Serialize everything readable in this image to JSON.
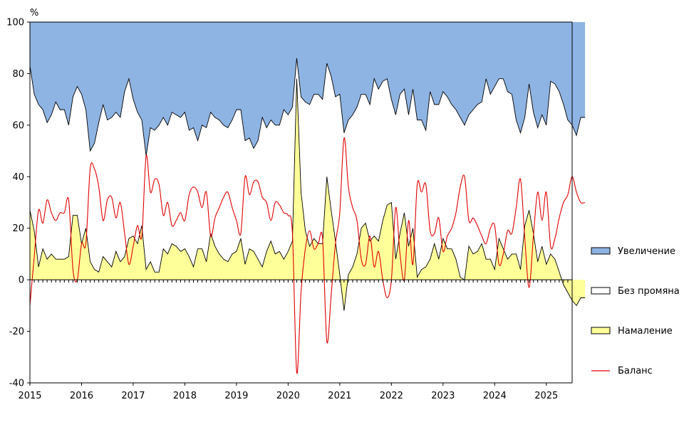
{
  "chart_data": {
    "type": "area",
    "y_unit": "%",
    "ylim": [
      -40,
      100
    ],
    "y_ticks": [
      -40,
      -20,
      0,
      20,
      40,
      60,
      80,
      100
    ],
    "x_ticks": [
      "2015",
      "2016",
      "2017",
      "2018",
      "2019",
      "2020",
      "2021",
      "2022",
      "2023",
      "2024",
      "2025"
    ],
    "xlim": [
      2015.0,
      2025.5
    ],
    "legend_position": "right",
    "colors": {
      "increase": "#8eb4e3",
      "nochange": "#ffffff",
      "decrease": "#ffff99",
      "balance": "#e00000",
      "outline": "#000000"
    },
    "series": [
      {
        "name": "Увеличение",
        "role": "increase",
        "x_start": 2015.0,
        "x_step": 0.0833333,
        "values": [
          17,
          28,
          32,
          34,
          39,
          36,
          31,
          34,
          34,
          40,
          29,
          25,
          28,
          34,
          50,
          47,
          39,
          32,
          38,
          37,
          35,
          37,
          27,
          22,
          30,
          35,
          38,
          52,
          41,
          42,
          40,
          37,
          40,
          35,
          36,
          37,
          35,
          42,
          41,
          46,
          40,
          41,
          35,
          37,
          38,
          40,
          41,
          38,
          34,
          34,
          46,
          45,
          49,
          46,
          37,
          41,
          38,
          40,
          40,
          34,
          36,
          33,
          14,
          29,
          31,
          32,
          28,
          28,
          30,
          16,
          21,
          29,
          28,
          43,
          38,
          33,
          33,
          28,
          28,
          32,
          22,
          26,
          23,
          22,
          30,
          36,
          28,
          26,
          36,
          26,
          38,
          38,
          42,
          27,
          32,
          32,
          27,
          29,
          32,
          34,
          37,
          40,
          36,
          34,
          32,
          31,
          22,
          28,
          25,
          22,
          22,
          27,
          28,
          38,
          43,
          37,
          24,
          35,
          41,
          36,
          40,
          23,
          24,
          27,
          32,
          38,
          40,
          44,
          37,
          37
        ]
      },
      {
        "name": "Без промяна",
        "role": "nochange",
        "x_start": 2015.0,
        "x_step": 0.0833333,
        "values": [
          56,
          53,
          63,
          54,
          53,
          54,
          61,
          58,
          58,
          51,
          46,
          50,
          58,
          46,
          43,
          49,
          58,
          59,
          55,
          58,
          54,
          56,
          64,
          62,
          53,
          51,
          41,
          44,
          52,
          55,
          57,
          51,
          50,
          51,
          51,
          52,
          53,
          49,
          54,
          42,
          48,
          52,
          47,
          50,
          52,
          52,
          52,
          52,
          55,
          50,
          48,
          43,
          40,
          46,
          58,
          48,
          47,
          50,
          49,
          58,
          53,
          52,
          8,
          37,
          50,
          55,
          56,
          58,
          56,
          44,
          52,
          56,
          70,
          69,
          60,
          59,
          57,
          52,
          50,
          53,
          61,
          59,
          54,
          49,
          40,
          56,
          54,
          48,
          51,
          54,
          61,
          58,
          53,
          65,
          54,
          60,
          57,
          59,
          56,
          58,
          62,
          60,
          51,
          56,
          57,
          55,
          70,
          64,
          71,
          62,
          66,
          65,
          62,
          52,
          53,
          42,
          49,
          47,
          52,
          51,
          54,
          67,
          68,
          70,
          70,
          67,
          68,
          66,
          70,
          70
        ]
      },
      {
        "name": "Намаление",
        "role": "decrease",
        "x_start": 2015.0,
        "x_step": 0.0833333,
        "values": [
          27,
          19,
          5,
          12,
          8,
          10,
          8,
          8,
          8,
          9,
          25,
          25,
          14,
          20,
          7,
          4,
          3,
          9,
          7,
          5,
          11,
          7,
          9,
          16,
          17,
          14,
          21,
          4,
          7,
          3,
          3,
          12,
          10,
          14,
          13,
          11,
          12,
          9,
          5,
          12,
          12,
          7,
          18,
          13,
          10,
          8,
          7,
          10,
          11,
          16,
          6,
          12,
          11,
          8,
          5,
          11,
          15,
          10,
          11,
          8,
          11,
          15,
          78,
          34,
          19,
          13,
          16,
          14,
          14,
          40,
          27,
          15,
          2,
          -12,
          2,
          5,
          10,
          20,
          22,
          15,
          17,
          15,
          23,
          29,
          30,
          8,
          18,
          26,
          13,
          20,
          1,
          4,
          5,
          8,
          14,
          8,
          16,
          12,
          12,
          8,
          1,
          0,
          13,
          10,
          11,
          14,
          8,
          8,
          4,
          16,
          12,
          8,
          10,
          10,
          4,
          21,
          27,
          18,
          7,
          13,
          6,
          10,
          8,
          3,
          -2,
          -5,
          -8,
          -10,
          -7,
          -7
        ]
      },
      {
        "name": "Баланс",
        "role": "balance",
        "x_start": 2015.0,
        "x_step": 0.0833333,
        "values": [
          -10,
          9,
          27,
          22,
          31,
          26,
          23,
          26,
          26,
          31,
          4,
          0,
          14,
          14,
          43,
          43,
          36,
          23,
          31,
          32,
          24,
          30,
          18,
          6,
          13,
          21,
          17,
          48,
          34,
          39,
          37,
          25,
          30,
          21,
          23,
          26,
          23,
          33,
          36,
          34,
          28,
          34,
          17,
          24,
          28,
          32,
          34,
          28,
          23,
          18,
          40,
          33,
          38,
          38,
          32,
          30,
          23,
          30,
          29,
          26,
          25,
          18,
          -36,
          -5,
          12,
          19,
          12,
          14,
          16,
          -24,
          -6,
          14,
          26,
          55,
          36,
          28,
          23,
          8,
          6,
          17,
          5,
          11,
          0,
          -7,
          0,
          28,
          10,
          0,
          23,
          6,
          37,
          34,
          37,
          19,
          18,
          24,
          11,
          17,
          20,
          26,
          36,
          40,
          23,
          24,
          21,
          17,
          14,
          20,
          21,
          6,
          10,
          19,
          18,
          28,
          39,
          16,
          -3,
          17,
          34,
          23,
          34,
          13,
          16,
          24,
          30,
          33,
          40,
          34,
          30,
          30
        ]
      }
    ]
  }
}
